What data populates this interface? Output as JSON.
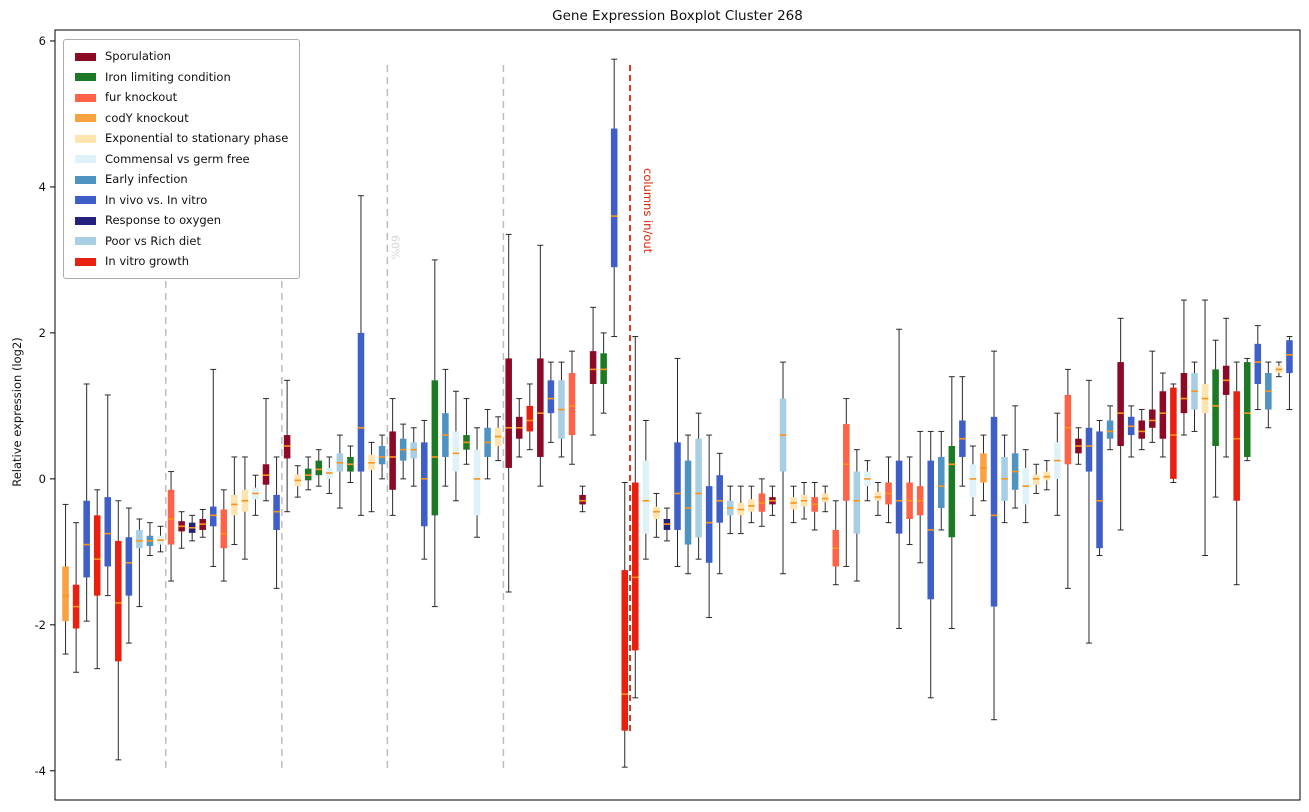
{
  "chart_data": {
    "type": "boxplot",
    "title": "Gene Expression Boxplot Cluster 268",
    "ylabel": "Relative expression (log2)",
    "xlabel": "",
    "ylim": [
      -4.4,
      6.15
    ],
    "yticks": [
      -4,
      -2,
      0,
      2,
      4,
      6
    ],
    "grid": false,
    "median_color": "#ff9214",
    "whisker_color": "#2a2a2a",
    "frame_color": "#000000",
    "colors": {
      "sp": "#8b0b26",
      "fe": "#1d7a24",
      "fur": "#ff6347",
      "cody": "#f9a242",
      "exp": "#ffe4b0",
      "com": "#def2f8",
      "ei": "#4f93c3",
      "iv": "#3e5fc7",
      "ox": "#23217b",
      "diet": "#a7cee3",
      "vitro": "#e8200f"
    },
    "legend": {
      "position": "upper left",
      "items": [
        {
          "label": "Sporulation",
          "key": "sp"
        },
        {
          "label": "Iron limiting condition",
          "key": "fe"
        },
        {
          "label": "fur knockout",
          "key": "fur"
        },
        {
          "label": "codY knockout",
          "key": "cody"
        },
        {
          "label": "Exponential to stationary phase",
          "key": "exp"
        },
        {
          "label": "Commensal vs germ free",
          "key": "com"
        },
        {
          "label": "Early infection",
          "key": "ei"
        },
        {
          "label": "In vivo vs. In vitro",
          "key": "iv"
        },
        {
          "label": "Response to oxygen",
          "key": "ox"
        },
        {
          "label": "Poor vs Rich diet",
          "key": "diet"
        },
        {
          "label": "In vitro growth",
          "key": "vitro"
        }
      ]
    },
    "separators": {
      "gray_color": "#bdbdbd",
      "gray_label_color": "#d6d6d6",
      "gray": [
        {
          "index": 10,
          "label": ""
        },
        {
          "index": 21,
          "label": ""
        },
        {
          "index": 31,
          "label": "60%"
        },
        {
          "index": 42,
          "label": ""
        }
      ],
      "red": {
        "index": 54,
        "label": "columns in/out",
        "color": "#da2408"
      }
    },
    "boxes": [
      [
        "cody",
        -2.4,
        -1.95,
        -1.6,
        -1.2,
        -0.35
      ],
      [
        "vitro",
        -2.65,
        -2.05,
        -1.75,
        -1.45,
        -0.6
      ],
      [
        "iv",
        -1.95,
        -1.35,
        -0.9,
        -0.3,
        1.3
      ],
      [
        "vitro",
        -2.6,
        -1.6,
        -1.1,
        -0.5,
        -0.15
      ],
      [
        "iv",
        -1.6,
        -1.2,
        -0.75,
        -0.25,
        1.15
      ],
      [
        "vitro",
        -3.85,
        -2.5,
        -1.7,
        -0.85,
        -0.3
      ],
      [
        "iv",
        -2.25,
        -1.6,
        -1.15,
        -0.8,
        -0.4
      ],
      [
        "diet",
        -1.75,
        -0.95,
        -0.85,
        -0.7,
        -0.55
      ],
      [
        "ei",
        -1.05,
        -0.92,
        -0.85,
        -0.78,
        -0.6
      ],
      [
        "com",
        -1.0,
        -0.9,
        -0.84,
        -0.78,
        -0.65
      ],
      [
        "fur",
        -1.4,
        -0.9,
        -0.55,
        -0.15,
        0.1
      ],
      [
        "sp",
        -0.95,
        -0.72,
        -0.65,
        -0.58,
        -0.45
      ],
      [
        "ox",
        -0.85,
        -0.74,
        -0.67,
        -0.6,
        -0.5
      ],
      [
        "sp",
        -0.8,
        -0.7,
        -0.62,
        -0.55,
        -0.42
      ],
      [
        "iv",
        -1.2,
        -0.65,
        -0.5,
        -0.38,
        1.5
      ],
      [
        "fur",
        -1.4,
        -0.95,
        -0.75,
        -0.42,
        -0.15
      ],
      [
        "exp",
        -0.9,
        -0.5,
        -0.35,
        -0.22,
        0.3
      ],
      [
        "exp",
        -1.1,
        -0.45,
        -0.3,
        -0.15,
        0.3
      ],
      [
        "com",
        -0.5,
        -0.28,
        -0.2,
        -0.12,
        0.05
      ],
      [
        "sp",
        -0.3,
        -0.08,
        0.05,
        0.2,
        1.1
      ],
      [
        "iv",
        -1.5,
        -0.7,
        -0.45,
        -0.22,
        0.3
      ],
      [
        "sp",
        -0.45,
        0.28,
        0.45,
        0.6,
        1.35
      ],
      [
        "exp",
        -0.25,
        -0.1,
        -0.02,
        0.06,
        0.18
      ],
      [
        "fe",
        -0.15,
        -0.02,
        0.05,
        0.14,
        0.3
      ],
      [
        "fe",
        -0.1,
        0.05,
        0.13,
        0.25,
        0.4
      ],
      [
        "com",
        -0.2,
        0.0,
        0.08,
        0.15,
        0.3
      ],
      [
        "diet",
        -0.4,
        0.1,
        0.22,
        0.35,
        0.6
      ],
      [
        "fe",
        -0.05,
        0.1,
        0.2,
        0.3,
        0.45
      ],
      [
        "iv",
        -0.5,
        0.1,
        0.7,
        2.0,
        3.88
      ],
      [
        "exp",
        -0.45,
        0.12,
        0.22,
        0.33,
        0.5
      ],
      [
        "ei",
        0.0,
        0.2,
        0.3,
        0.45,
        0.6
      ],
      [
        "sp",
        -0.5,
        -0.15,
        0.3,
        0.65,
        1.1
      ],
      [
        "ei",
        0.0,
        0.25,
        0.4,
        0.55,
        0.75
      ],
      [
        "diet",
        -0.1,
        0.28,
        0.4,
        0.5,
        0.7
      ],
      [
        "iv",
        -1.1,
        -0.65,
        0.0,
        0.5,
        0.8
      ],
      [
        "fe",
        -1.75,
        -0.5,
        0.3,
        1.35,
        3.0
      ],
      [
        "ei",
        -0.1,
        0.3,
        0.6,
        0.9,
        1.5
      ],
      [
        "com",
        -0.3,
        0.1,
        0.35,
        0.65,
        1.2
      ],
      [
        "fe",
        0.2,
        0.4,
        0.5,
        0.6,
        1.1
      ],
      [
        "com",
        -0.8,
        -0.5,
        0.0,
        0.4,
        0.7
      ],
      [
        "ei",
        0.0,
        0.3,
        0.5,
        0.7,
        0.95
      ],
      [
        "exp",
        0.25,
        0.45,
        0.58,
        0.7,
        0.85
      ],
      [
        "sp",
        -1.55,
        0.15,
        0.7,
        1.65,
        3.35
      ],
      [
        "sp",
        0.3,
        0.55,
        0.7,
        0.85,
        1.1
      ],
      [
        "vitro",
        0.4,
        0.65,
        0.8,
        1.0,
        1.3
      ],
      [
        "sp",
        -0.1,
        0.3,
        0.9,
        1.65,
        3.2
      ],
      [
        "iv",
        0.5,
        0.9,
        1.1,
        1.35,
        1.6
      ],
      [
        "diet",
        0.3,
        0.55,
        0.95,
        1.35,
        1.6
      ],
      [
        "fur",
        0.2,
        0.6,
        1.0,
        1.45,
        1.75
      ],
      [
        "sp",
        -0.45,
        -0.35,
        -0.3,
        -0.22,
        -0.1
      ],
      [
        "sp",
        0.6,
        1.3,
        1.5,
        1.75,
        2.35
      ],
      [
        "fe",
        0.9,
        1.3,
        1.5,
        1.72,
        2.0
      ],
      [
        "iv",
        1.95,
        2.9,
        3.6,
        4.8,
        5.75
      ],
      [
        "vitro",
        -3.95,
        -3.45,
        -2.95,
        -1.25,
        -0.05
      ],
      [
        "vitro",
        -3.0,
        -2.35,
        -1.35,
        -0.05,
        1.95
      ],
      [
        "com",
        -1.1,
        -0.75,
        -0.3,
        0.25,
        0.8
      ],
      [
        "exp",
        -0.8,
        -0.55,
        -0.45,
        -0.38,
        -0.2
      ],
      [
        "ox",
        -0.85,
        -0.7,
        -0.62,
        -0.55,
        -0.4
      ],
      [
        "iv",
        -1.2,
        -0.7,
        -0.2,
        0.5,
        1.65
      ],
      [
        "ei",
        -1.3,
        -0.9,
        -0.4,
        0.25,
        0.6
      ],
      [
        "diet",
        -1.1,
        -0.8,
        -0.2,
        0.55,
        0.9
      ],
      [
        "iv",
        -1.9,
        -1.15,
        -0.6,
        -0.1,
        0.6
      ],
      [
        "iv",
        -1.3,
        -0.6,
        -0.3,
        0.05,
        0.35
      ],
      [
        "diet",
        -0.75,
        -0.5,
        -0.4,
        -0.3,
        -0.1
      ],
      [
        "exp",
        -0.75,
        -0.5,
        -0.42,
        -0.33,
        -0.1
      ],
      [
        "exp",
        -0.6,
        -0.45,
        -0.37,
        -0.28,
        -0.1
      ],
      [
        "fur",
        -0.65,
        -0.45,
        -0.33,
        -0.2,
        0.0
      ],
      [
        "sp",
        -0.5,
        -0.35,
        -0.3,
        -0.25,
        -0.1
      ],
      [
        "diet",
        -1.3,
        0.1,
        0.6,
        1.1,
        1.6
      ],
      [
        "exp",
        -0.6,
        -0.42,
        -0.33,
        -0.25,
        -0.1
      ],
      [
        "exp",
        -0.55,
        -0.38,
        -0.3,
        -0.22,
        -0.05
      ],
      [
        "fur",
        -0.7,
        -0.45,
        -0.35,
        -0.25,
        -0.05
      ],
      [
        "exp",
        -0.45,
        -0.32,
        -0.27,
        -0.2,
        -0.1
      ],
      [
        "fur",
        -1.45,
        -1.2,
        -0.95,
        -0.7,
        -0.3
      ],
      [
        "fur",
        -1.2,
        -0.3,
        0.2,
        0.75,
        1.1
      ],
      [
        "diet",
        -1.4,
        -0.75,
        -0.3,
        0.1,
        0.4
      ],
      [
        "com",
        -0.3,
        -0.1,
        0.0,
        0.1,
        0.25
      ],
      [
        "exp",
        -0.5,
        -0.3,
        -0.25,
        -0.18,
        -0.05
      ],
      [
        "fur",
        -0.6,
        -0.35,
        -0.2,
        -0.05,
        0.3
      ],
      [
        "iv",
        -2.05,
        -0.75,
        -0.3,
        0.25,
        2.05
      ],
      [
        "fur",
        -0.9,
        -0.55,
        -0.3,
        -0.05,
        0.3
      ],
      [
        "fur",
        -1.15,
        -0.5,
        -0.3,
        -0.1,
        0.65
      ],
      [
        "iv",
        -3.0,
        -1.65,
        -0.7,
        0.25,
        0.65
      ],
      [
        "ei",
        -0.7,
        -0.4,
        -0.1,
        0.3,
        0.65
      ],
      [
        "fe",
        -2.05,
        -0.8,
        0.2,
        0.45,
        1.4
      ],
      [
        "iv",
        -0.1,
        0.3,
        0.55,
        0.8,
        1.4
      ],
      [
        "com",
        -0.5,
        -0.25,
        0.0,
        0.2,
        0.45
      ],
      [
        "cody",
        -0.3,
        -0.05,
        0.15,
        0.35,
        0.6
      ],
      [
        "iv",
        -3.3,
        -1.75,
        -0.5,
        0.85,
        1.75
      ],
      [
        "diet",
        -0.6,
        -0.3,
        0.0,
        0.3,
        0.6
      ],
      [
        "ei",
        -0.4,
        -0.15,
        0.1,
        0.35,
        1.0
      ],
      [
        "com",
        -0.6,
        -0.35,
        -0.1,
        0.15,
        0.4
      ],
      [
        "exp",
        -0.2,
        -0.08,
        0.0,
        0.06,
        0.2
      ],
      [
        "exp",
        -0.15,
        -0.02,
        0.03,
        0.1,
        0.25
      ],
      [
        "com",
        -0.5,
        0.0,
        0.25,
        0.5,
        0.9
      ],
      [
        "fur",
        -1.5,
        0.2,
        0.7,
        1.15,
        1.5
      ],
      [
        "sp",
        0.2,
        0.35,
        0.45,
        0.55,
        0.7
      ],
      [
        "iv",
        -2.25,
        0.1,
        0.45,
        0.7,
        1.35
      ],
      [
        "iv",
        -1.05,
        -0.95,
        -0.3,
        0.65,
        0.8
      ],
      [
        "ei",
        0.4,
        0.55,
        0.65,
        0.8,
        1.0
      ],
      [
        "sp",
        -0.7,
        0.45,
        0.9,
        1.6,
        2.2
      ],
      [
        "iv",
        0.3,
        0.6,
        0.72,
        0.85,
        1.0
      ],
      [
        "sp",
        0.4,
        0.55,
        0.65,
        0.8,
        0.95
      ],
      [
        "sp",
        0.5,
        0.7,
        0.8,
        0.95,
        1.75
      ],
      [
        "sp",
        0.3,
        0.55,
        0.9,
        1.2,
        1.45
      ],
      [
        "vitro",
        -0.05,
        0.0,
        0.6,
        1.25,
        1.3
      ],
      [
        "sp",
        0.6,
        0.9,
        1.1,
        1.45,
        2.45
      ],
      [
        "diet",
        0.65,
        0.95,
        1.2,
        1.45,
        1.6
      ],
      [
        "exp",
        -1.05,
        0.9,
        1.1,
        1.3,
        2.45
      ],
      [
        "fe",
        -0.25,
        0.45,
        1.0,
        1.5,
        1.9
      ],
      [
        "sp",
        0.3,
        1.15,
        1.35,
        1.55,
        2.2
      ],
      [
        "vitro",
        -1.45,
        -0.3,
        0.55,
        1.2,
        1.6
      ],
      [
        "fe",
        0.25,
        0.3,
        0.9,
        1.6,
        1.65
      ],
      [
        "iv",
        0.95,
        1.3,
        1.6,
        1.85,
        2.1
      ],
      [
        "ei",
        0.7,
        0.95,
        1.2,
        1.45,
        1.6
      ],
      [
        "exp",
        1.4,
        1.45,
        1.5,
        1.55,
        1.6
      ],
      [
        "iv",
        0.95,
        1.45,
        1.7,
        1.9,
        1.95
      ]
    ]
  }
}
